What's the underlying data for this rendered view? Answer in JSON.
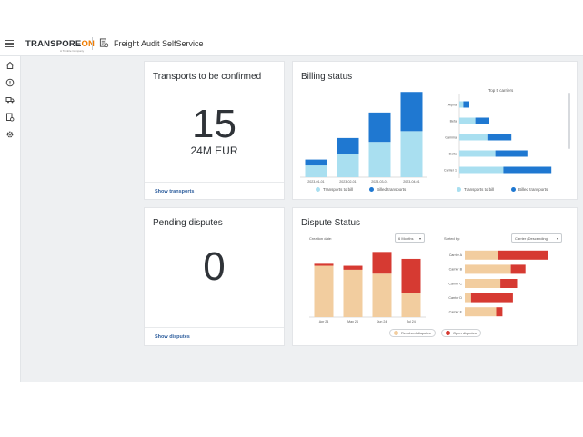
{
  "header": {
    "brand_main": "TRANSPORE",
    "brand_on": "ON",
    "brand_sub": "A Trimble Company",
    "app_title": "Freight Audit SelfService"
  },
  "sidebar": {
    "items": [
      {
        "name": "home-icon"
      },
      {
        "name": "info-icon"
      },
      {
        "name": "truck-icon"
      },
      {
        "name": "invoice-icon"
      },
      {
        "name": "gear-icon"
      }
    ]
  },
  "transports": {
    "title": "Transports to be confirmed",
    "count": "15",
    "amount": "24M EUR",
    "link": "Show transports"
  },
  "disputes": {
    "title": "Pending disputes",
    "count": "0",
    "link": "Show disputes"
  },
  "billing": {
    "title": "Billing status",
    "carriers_title": "Top 5 carriers",
    "legend_bill": "Transports to bill",
    "legend_billed": "Billed transports",
    "legend_bill2": "Transports to bill",
    "legend_billed2": "Billed transports"
  },
  "dispute_status": {
    "title": "Dispute Status",
    "creation_label": "Creation date:",
    "creation_value": "6 Months",
    "sorted_label": "Sorted by:",
    "sorted_value": "Carrier (Descending)",
    "legend_resolved": "Resolved disputes",
    "legend_open": "Open disputes"
  },
  "colors": {
    "light_blue": "#a9dff0",
    "dark_blue": "#1f78d1",
    "tan": "#f2cd9f",
    "red": "#d63a32"
  },
  "chart_data": [
    {
      "type": "bar",
      "stacked": true,
      "categories": [
        "2023-01-01",
        "2023-02-01",
        "2023-03-01",
        "2023-04-01"
      ],
      "series": [
        {
          "name": "Transports to bill",
          "values": [
            12,
            24,
            36,
            47
          ]
        },
        {
          "name": "Billed transports",
          "values": [
            6,
            16,
            30,
            40
          ]
        }
      ],
      "ylim": [
        0,
        90
      ],
      "legend": "bottom"
    },
    {
      "type": "bar",
      "orientation": "horizontal",
      "stacked": true,
      "title": "Top 5 carriers",
      "categories": [
        "Alpha",
        "Beta",
        "Gamma",
        "Delta",
        "Carrier 1"
      ],
      "series": [
        {
          "name": "Transports to bill",
          "values": [
            2,
            8,
            14,
            18,
            22
          ]
        },
        {
          "name": "Billed transports",
          "values": [
            3,
            7,
            12,
            16,
            24
          ]
        }
      ],
      "xlim": [
        0,
        50
      ],
      "legend": "bottom"
    },
    {
      "type": "bar",
      "stacked": true,
      "categories": [
        "Apr 24",
        "May 24",
        "Jun 24",
        "Jul 24"
      ],
      "series": [
        {
          "name": "Resolved disputes",
          "values": [
            52,
            48,
            44,
            24
          ]
        },
        {
          "name": "Open disputes",
          "values": [
            2,
            4,
            22,
            35
          ]
        }
      ],
      "ylim": [
        0,
        70
      ],
      "legend": "bottom"
    },
    {
      "type": "bar",
      "orientation": "horizontal",
      "stacked": true,
      "categories": [
        "Carrier A",
        "Carrier B",
        "Carrier C",
        "Carrier D",
        "Carrier E"
      ],
      "series": [
        {
          "name": "Resolved disputes",
          "values": [
            32,
            44,
            34,
            6,
            30
          ]
        },
        {
          "name": "Open disputes",
          "values": [
            48,
            14,
            16,
            40,
            6
          ]
        }
      ],
      "xlim": [
        0,
        100
      ],
      "legend": "bottom"
    }
  ]
}
